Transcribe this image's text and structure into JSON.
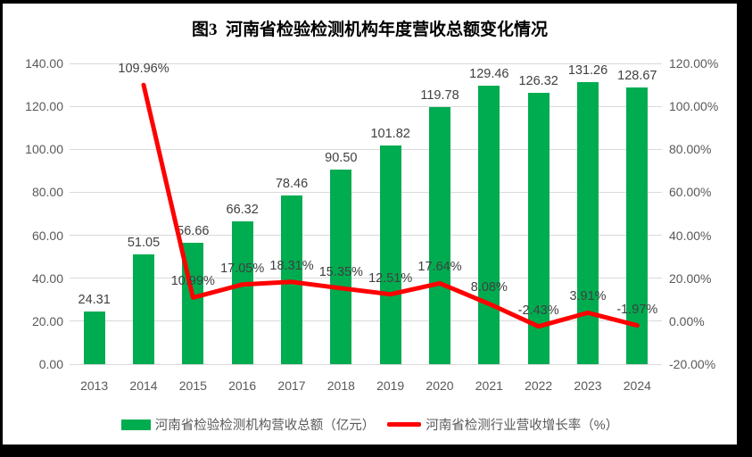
{
  "title": "图3  河南省检验检测机构年度营收总额变化情况",
  "colors": {
    "bar": "#00AC50",
    "line": "#FF0000",
    "grid": "#D9D9D9",
    "axis_label": "#595959",
    "data_label": "#404040",
    "background": "#FFFFFF",
    "frame": "#000000"
  },
  "chart_data": {
    "type": "bar",
    "subtype": "bar+line combo, dual axis",
    "title": "图3  河南省检验检测机构年度营收总额变化情况",
    "categories": [
      "2013",
      "2014",
      "2015",
      "2016",
      "2017",
      "2018",
      "2019",
      "2020",
      "2021",
      "2022",
      "2023",
      "2024"
    ],
    "series": [
      {
        "name": "河南省检验检测机构营收总额（亿元）",
        "type": "bar",
        "axis": "left",
        "color": "#00AC50",
        "values": [
          24.31,
          51.05,
          56.66,
          66.32,
          78.46,
          90.5,
          101.82,
          119.78,
          129.46,
          126.32,
          131.26,
          128.67
        ],
        "labels": [
          "24.31",
          "51.05",
          "56.66",
          "66.32",
          "78.46",
          "90.50",
          "101.82",
          "119.78",
          "129.46",
          "126.32",
          "131.26",
          "128.67"
        ]
      },
      {
        "name": "河南省检测行业营收增长率（%）",
        "type": "line",
        "axis": "right",
        "color": "#FF0000",
        "values": [
          null,
          109.96,
          10.99,
          17.05,
          18.31,
          15.35,
          12.51,
          17.64,
          8.08,
          -2.43,
          3.91,
          -1.97
        ],
        "labels": [
          null,
          "109.96%",
          "10.99%",
          "17.05%",
          "18.31%",
          "15.35%",
          "12.51%",
          "17.64%",
          "8.08%",
          "-2.43%",
          "3.91%",
          "-1.97%"
        ]
      }
    ],
    "left_axis": {
      "min": 0,
      "max": 140,
      "step": 20,
      "ticks": [
        "0.00",
        "20.00",
        "40.00",
        "60.00",
        "80.00",
        "100.00",
        "120.00",
        "140.00"
      ]
    },
    "right_axis": {
      "min": -20,
      "max": 120,
      "step": 20,
      "ticks": [
        "-20.00%",
        "0.00%",
        "20.00%",
        "40.00%",
        "60.00%",
        "80.00%",
        "100.00%",
        "120.00%"
      ]
    },
    "grid": true,
    "legend_position": "bottom"
  }
}
